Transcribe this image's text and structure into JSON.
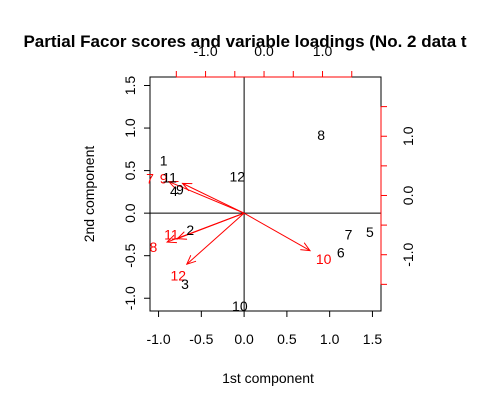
{
  "chart_data": {
    "type": "scatter",
    "title": "Partial Facor scores and variable loadings (No. 2  data t",
    "xlabel": "1st component",
    "ylabel": "2nd component",
    "xlim": [
      -1.1,
      1.6
    ],
    "ylim": [
      -1.15,
      1.6
    ],
    "bottom_ticks": [
      "-1.0",
      "-0.5",
      "0.0",
      "0.5",
      "1.0",
      "1.5"
    ],
    "left_ticks": [
      "-1.0",
      "-0.5",
      "0.0",
      "0.5",
      "1.0",
      "1.5"
    ],
    "top_ticks": [
      "-1.0",
      "0.0",
      "1.0"
    ],
    "right_ticks": [
      "-1.0",
      "0.0",
      "1.0"
    ],
    "loading_axis_lim": [
      -1.95,
      2.0
    ],
    "colors": {
      "scores": "#000000",
      "loadings": "#ff0000"
    },
    "scores": [
      {
        "label": "1",
        "x": -0.94,
        "y": 0.62
      },
      {
        "label": "11",
        "x": -0.87,
        "y": 0.42
      },
      {
        "label": "4",
        "x": -0.82,
        "y": 0.26
      },
      {
        "label": "9",
        "x": -0.75,
        "y": 0.28
      },
      {
        "label": "12",
        "x": -0.08,
        "y": 0.43
      },
      {
        "label": "8",
        "x": 0.9,
        "y": 0.92
      },
      {
        "label": "2",
        "x": -0.63,
        "y": -0.2
      },
      {
        "label": "7",
        "x": 1.22,
        "y": -0.25
      },
      {
        "label": "5",
        "x": 1.47,
        "y": -0.22
      },
      {
        "label": "6",
        "x": 1.13,
        "y": -0.46
      },
      {
        "label": "3",
        "x": -0.69,
        "y": -0.83
      },
      {
        "label": "10",
        "x": -0.05,
        "y": -1.09
      }
    ],
    "loadings": [
      {
        "label": "7",
        "x": -1.1,
        "y": 0.41,
        "tip_x": -0.88,
        "tip_y": 0.37
      },
      {
        "label": "9",
        "x": -0.94,
        "y": 0.41,
        "tip_x": -0.72,
        "tip_y": 0.35
      },
      {
        "label": "8",
        "x": -1.06,
        "y": -0.4,
        "tip_x": -0.9,
        "tip_y": -0.34
      },
      {
        "label": "11",
        "x": -0.85,
        "y": -0.25,
        "tip_x": -0.78,
        "tip_y": -0.3
      },
      {
        "label": "12",
        "x": -0.77,
        "y": -0.73,
        "tip_x": -0.67,
        "tip_y": -0.6
      },
      {
        "label": "10",
        "x": 0.93,
        "y": -0.54,
        "tip_x": 0.77,
        "tip_y": -0.44
      }
    ]
  }
}
